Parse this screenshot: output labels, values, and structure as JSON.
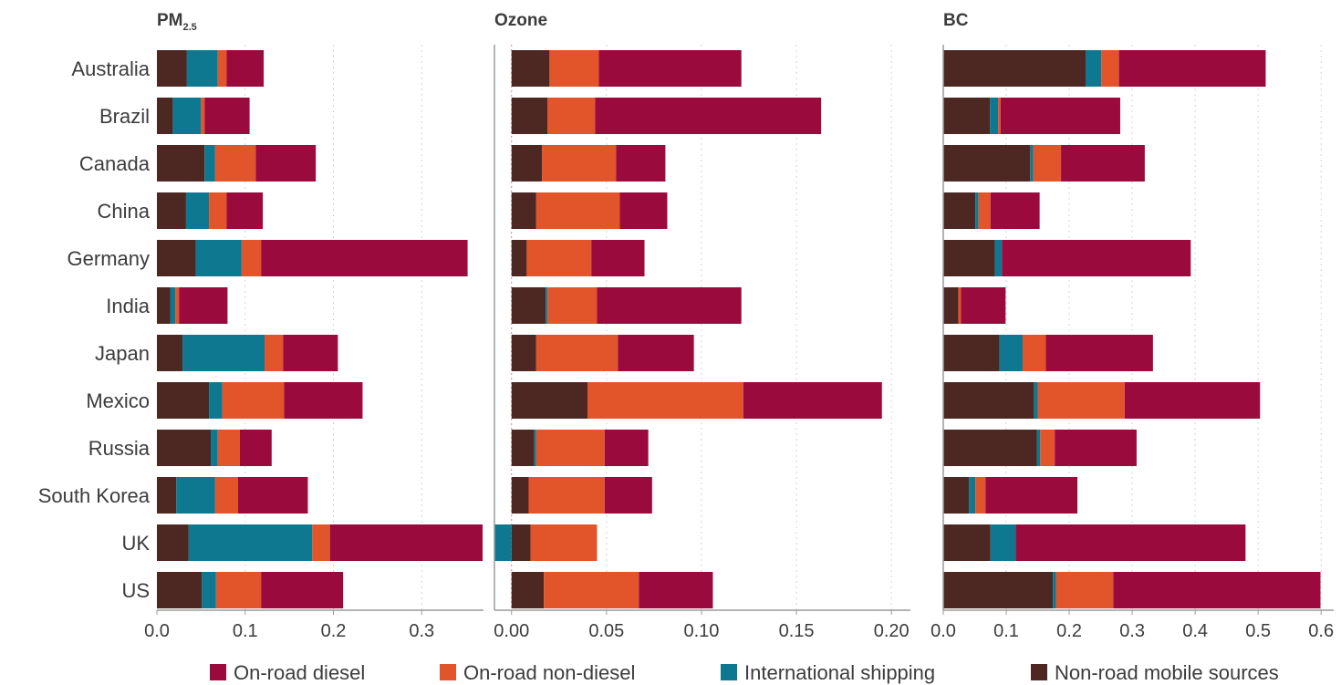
{
  "colors": {
    "on_road_diesel": "#9b0a3c",
    "on_road_non_diesel": "#e2542a",
    "international_shipping": "#0f7891",
    "non_road_mobile": "#4d2822",
    "axis": "#9a9a9a",
    "grid": "#d4d4d4",
    "text": "#3c3c3c"
  },
  "legend": [
    {
      "key": "on_road_diesel",
      "label": "On-road diesel"
    },
    {
      "key": "on_road_non_diesel",
      "label": "On-road non-diesel"
    },
    {
      "key": "international_shipping",
      "label": "International shipping"
    },
    {
      "key": "non_road_mobile",
      "label": "Non-road mobile sources"
    }
  ],
  "chart_data": {
    "type": "bar",
    "orientation": "horizontal",
    "stacked": true,
    "grid": true,
    "legend_position": "bottom",
    "categories": [
      "Australia",
      "Brazil",
      "Canada",
      "China",
      "Germany",
      "India",
      "Japan",
      "Mexico",
      "Russia",
      "South Korea",
      "UK",
      "US"
    ],
    "stack_order": [
      "non_road_mobile",
      "international_shipping",
      "on_road_non_diesel",
      "on_road_diesel"
    ],
    "panels": [
      {
        "title": "PM",
        "title_sub": "2.5",
        "xlim": [
          0,
          0.37
        ],
        "ticks": [
          0.0,
          0.1,
          0.2,
          0.3
        ],
        "tick_labels": [
          "0.0",
          "0.1",
          "0.2",
          "0.3"
        ],
        "series": [
          {
            "key": "non_road_mobile",
            "name": "Non-road mobile sources",
            "values": [
              0.034,
              0.018,
              0.054,
              0.033,
              0.044,
              0.015,
              0.029,
              0.059,
              0.061,
              0.022,
              0.036,
              0.051
            ]
          },
          {
            "key": "international_shipping",
            "name": "International shipping",
            "values": [
              0.035,
              0.032,
              0.012,
              0.026,
              0.052,
              0.006,
              0.093,
              0.015,
              0.008,
              0.044,
              0.14,
              0.016
            ]
          },
          {
            "key": "on_road_non_diesel",
            "name": "On-road non-diesel",
            "values": [
              0.01,
              0.004,
              0.046,
              0.02,
              0.022,
              0.004,
              0.021,
              0.07,
              0.025,
              0.026,
              0.02,
              0.051
            ]
          },
          {
            "key": "on_road_diesel",
            "name": "On-road diesel",
            "values": [
              0.042,
              0.051,
              0.068,
              0.041,
              0.234,
              0.055,
              0.062,
              0.089,
              0.036,
              0.079,
              0.173,
              0.093
            ]
          }
        ]
      },
      {
        "title": "Ozone",
        "xlim": [
          -0.009,
          0.21
        ],
        "ticks": [
          0.0,
          0.05,
          0.1,
          0.15,
          0.2
        ],
        "tick_labels": [
          "0.00",
          "0.05",
          "0.10",
          "0.15",
          "0.20"
        ],
        "series": [
          {
            "key": "non_road_mobile",
            "name": "Non-road mobile sources",
            "values": [
              0.02,
              0.019,
              0.016,
              0.013,
              0.008,
              0.018,
              0.013,
              0.04,
              0.012,
              0.009,
              0.01,
              0.017
            ]
          },
          {
            "key": "international_shipping",
            "name": "International shipping",
            "values": [
              0.0,
              0.0,
              0.0,
              0.0,
              0.0,
              0.001,
              0.0,
              0.0,
              0.001,
              0.0,
              -0.009,
              0.0
            ]
          },
          {
            "key": "on_road_non_diesel",
            "name": "On-road non-diesel",
            "values": [
              0.026,
              0.025,
              0.039,
              0.044,
              0.034,
              0.026,
              0.043,
              0.082,
              0.036,
              0.04,
              0.035,
              0.05
            ]
          },
          {
            "key": "on_road_diesel",
            "name": "On-road diesel",
            "values": [
              0.075,
              0.119,
              0.026,
              0.025,
              0.028,
              0.076,
              0.04,
              0.073,
              0.023,
              0.025,
              0.0,
              0.039
            ]
          }
        ]
      },
      {
        "title": "BC",
        "xlim": [
          0,
          0.62
        ],
        "ticks": [
          0.0,
          0.1,
          0.2,
          0.3,
          0.4,
          0.5,
          0.6
        ],
        "tick_labels": [
          "0.0",
          "0.1",
          "0.2",
          "0.3",
          "0.4",
          "0.5",
          "0.6"
        ],
        "series": [
          {
            "key": "non_road_mobile",
            "name": "Non-road mobile sources",
            "values": [
              0.226,
              0.074,
              0.138,
              0.051,
              0.082,
              0.024,
              0.089,
              0.144,
              0.149,
              0.041,
              0.075,
              0.174
            ]
          },
          {
            "key": "international_shipping",
            "name": "International shipping",
            "values": [
              0.025,
              0.013,
              0.005,
              0.005,
              0.011,
              0.0,
              0.037,
              0.006,
              0.005,
              0.01,
              0.04,
              0.005
            ]
          },
          {
            "key": "on_road_non_diesel",
            "name": "On-road non-diesel",
            "values": [
              0.028,
              0.004,
              0.044,
              0.019,
              0.0,
              0.004,
              0.037,
              0.138,
              0.023,
              0.016,
              0.0,
              0.091
            ]
          },
          {
            "key": "on_road_diesel",
            "name": "On-road diesel",
            "values": [
              0.233,
              0.19,
              0.133,
              0.078,
              0.3,
              0.071,
              0.17,
              0.215,
              0.13,
              0.146,
              0.365,
              0.329
            ]
          }
        ]
      }
    ]
  }
}
